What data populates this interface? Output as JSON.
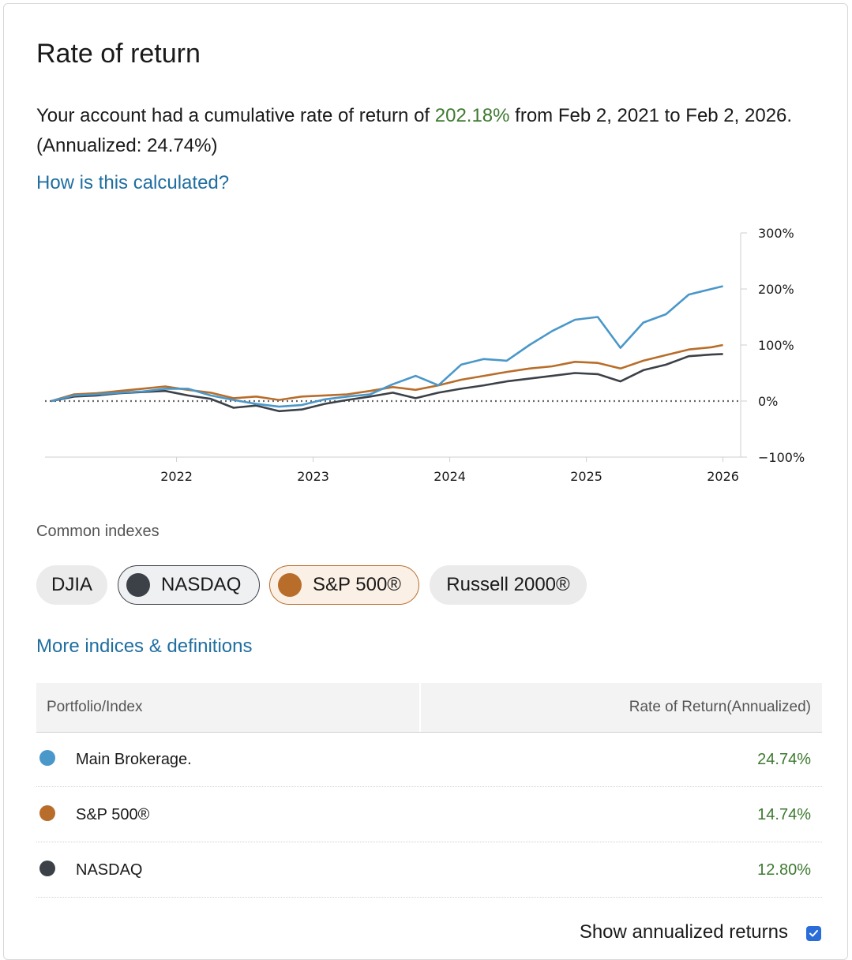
{
  "header": {
    "title": "Rate of return",
    "summary_prefix": "Your account had a cumulative rate of return of ",
    "summary_highlight": "202.18%",
    "summary_suffix": " from Feb 2, 2021 to Feb 2, 2026. (Annualized: 24.74%)",
    "calc_link": "How is this calculated?"
  },
  "colors": {
    "brokerage": "#4a97c9",
    "sp500": "#b86d2a",
    "nasdaq": "#3c4148",
    "positive": "#3d7a2f",
    "link": "#1f6ea0"
  },
  "chart_data": {
    "type": "line",
    "x_ticks": [
      "2022",
      "2023",
      "2024",
      "2025",
      "2026"
    ],
    "y_ticks": [
      "300%",
      "200%",
      "100%",
      "0%",
      "−100%"
    ],
    "ylim": [
      -100,
      300
    ],
    "xlim": [
      "2021-02",
      "2026-02"
    ],
    "baseline": 0,
    "series": [
      {
        "key": "brokerage",
        "color": "#4a97c9",
        "x": [
          "2021-02",
          "2021-04",
          "2021-06",
          "2021-08",
          "2021-10",
          "2021-12",
          "2022-02",
          "2022-04",
          "2022-06",
          "2022-08",
          "2022-10",
          "2022-12",
          "2023-02",
          "2023-04",
          "2023-06",
          "2023-08",
          "2023-10",
          "2023-12",
          "2024-02",
          "2024-04",
          "2024-06",
          "2024-08",
          "2024-10",
          "2024-12",
          "2025-02",
          "2025-04",
          "2025-06",
          "2025-08",
          "2025-10",
          "2025-12",
          "2026-01"
        ],
        "y": [
          0,
          10,
          12,
          15,
          17,
          22,
          22,
          10,
          2,
          -5,
          -10,
          -7,
          3,
          8,
          12,
          30,
          45,
          28,
          65,
          75,
          72,
          100,
          125,
          145,
          150,
          95,
          140,
          155,
          190,
          200,
          205
        ]
      },
      {
        "key": "sp500",
        "color": "#b86d2a",
        "x": [
          "2021-02",
          "2021-04",
          "2021-06",
          "2021-08",
          "2021-10",
          "2021-12",
          "2022-02",
          "2022-04",
          "2022-06",
          "2022-08",
          "2022-10",
          "2022-12",
          "2023-02",
          "2023-04",
          "2023-06",
          "2023-08",
          "2023-10",
          "2023-12",
          "2024-02",
          "2024-04",
          "2024-06",
          "2024-08",
          "2024-10",
          "2024-12",
          "2025-02",
          "2025-04",
          "2025-06",
          "2025-08",
          "2025-10",
          "2025-12",
          "2026-01"
        ],
        "y": [
          0,
          12,
          14,
          18,
          22,
          26,
          20,
          15,
          5,
          8,
          2,
          8,
          10,
          12,
          18,
          25,
          20,
          28,
          38,
          45,
          52,
          58,
          62,
          70,
          68,
          58,
          72,
          82,
          92,
          96,
          100
        ]
      },
      {
        "key": "nasdaq",
        "color": "#3c4148",
        "x": [
          "2021-02",
          "2021-04",
          "2021-06",
          "2021-08",
          "2021-10",
          "2021-12",
          "2022-02",
          "2022-04",
          "2022-06",
          "2022-08",
          "2022-10",
          "2022-12",
          "2023-02",
          "2023-04",
          "2023-06",
          "2023-08",
          "2023-10",
          "2023-12",
          "2024-02",
          "2024-04",
          "2024-06",
          "2024-08",
          "2024-10",
          "2024-12",
          "2025-02",
          "2025-04",
          "2025-06",
          "2025-08",
          "2025-10",
          "2025-12",
          "2026-01"
        ],
        "y": [
          0,
          8,
          10,
          14,
          16,
          18,
          10,
          4,
          -12,
          -8,
          -18,
          -15,
          -5,
          2,
          8,
          15,
          5,
          15,
          22,
          28,
          35,
          40,
          45,
          50,
          48,
          35,
          55,
          65,
          80,
          83,
          84
        ]
      }
    ]
  },
  "indexes": {
    "label": "Common indexes",
    "chips": [
      {
        "label": "DJIA"
      },
      {
        "label": "NASDAQ"
      },
      {
        "label": "S&P 500®"
      },
      {
        "label": "Russell 2000®"
      }
    ],
    "more_link": "More indices & definitions"
  },
  "table": {
    "col_left": "Portfolio/Index",
    "col_right": "Rate of Return(Annualized)",
    "rows": [
      {
        "name": "Main Brokerage.",
        "value": "24.74%"
      },
      {
        "name": "S&P 500®",
        "value": "14.74%"
      },
      {
        "name": "NASDAQ",
        "value": "12.80%"
      }
    ]
  },
  "footer": {
    "toggle_label": "Show annualized returns",
    "toggle_checked": true
  }
}
